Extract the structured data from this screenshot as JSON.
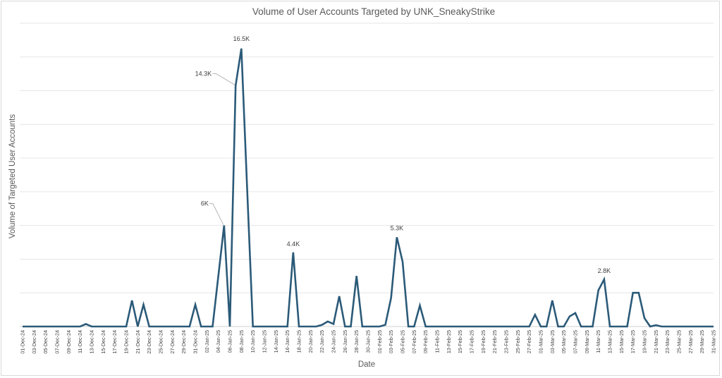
{
  "chart_data": {
    "type": "line",
    "title": "Volume of User Accounts Targeted by UNK_SneakyStrike",
    "xlabel": "Date",
    "ylabel": "Volume of Targeted User Accounts",
    "ylim": [
      0,
      18000
    ],
    "y_tick_labels_shown": false,
    "grid": true,
    "legend": "none",
    "line_color": "#2b5a78",
    "x": [
      "01-Dec-24",
      "02-Dec-24",
      "03-Dec-24",
      "04-Dec-24",
      "05-Dec-24",
      "06-Dec-24",
      "07-Dec-24",
      "08-Dec-24",
      "09-Dec-24",
      "10-Dec-24",
      "11-Dec-24",
      "12-Dec-24",
      "13-Dec-24",
      "14-Dec-24",
      "15-Dec-24",
      "16-Dec-24",
      "17-Dec-24",
      "18-Dec-24",
      "19-Dec-24",
      "20-Dec-24",
      "21-Dec-24",
      "22-Dec-24",
      "23-Dec-24",
      "24-Dec-24",
      "25-Dec-24",
      "26-Dec-24",
      "27-Dec-24",
      "28-Dec-24",
      "29-Dec-24",
      "30-Dec-24",
      "31-Dec-24",
      "01-Jan-25",
      "02-Jan-25",
      "03-Jan-25",
      "04-Jan-25",
      "05-Jan-25",
      "06-Jan-25",
      "07-Jan-25",
      "08-Jan-25",
      "09-Jan-25",
      "10-Jan-25",
      "11-Jan-25",
      "12-Jan-25",
      "13-Jan-25",
      "14-Jan-25",
      "15-Jan-25",
      "16-Jan-25",
      "17-Jan-25",
      "18-Jan-25",
      "19-Jan-25",
      "20-Jan-25",
      "21-Jan-25",
      "22-Jan-25",
      "23-Jan-25",
      "24-Jan-25",
      "25-Jan-25",
      "26-Jan-25",
      "27-Jan-25",
      "28-Jan-25",
      "29-Jan-25",
      "30-Jan-25",
      "31-Jan-25",
      "01-Feb-25",
      "02-Feb-25",
      "03-Feb-25",
      "04-Feb-25",
      "05-Feb-25",
      "06-Feb-25",
      "07-Feb-25",
      "08-Feb-25",
      "09-Feb-25",
      "10-Feb-25",
      "11-Feb-25",
      "12-Feb-25",
      "13-Feb-25",
      "14-Feb-25",
      "15-Feb-25",
      "16-Feb-25",
      "17-Feb-25",
      "18-Feb-25",
      "19-Feb-25",
      "20-Feb-25",
      "21-Feb-25",
      "22-Feb-25",
      "23-Feb-25",
      "24-Feb-25",
      "25-Feb-25",
      "26-Feb-25",
      "27-Feb-25",
      "28-Feb-25",
      "01-Mar-25",
      "02-Mar-25",
      "03-Mar-25",
      "04-Mar-25",
      "05-Mar-25",
      "06-Mar-25",
      "07-Mar-25",
      "08-Mar-25",
      "09-Mar-25",
      "10-Mar-25",
      "11-Mar-25",
      "12-Mar-25",
      "13-Mar-25",
      "14-Mar-25",
      "15-Mar-25",
      "16-Mar-25",
      "17-Mar-25",
      "18-Mar-25",
      "19-Mar-25",
      "20-Mar-25",
      "21-Mar-25",
      "22-Mar-25",
      "23-Mar-25",
      "24-Mar-25",
      "25-Mar-25",
      "26-Mar-25",
      "27-Mar-25",
      "28-Mar-25",
      "29-Mar-25",
      "30-Mar-25",
      "31-Mar-25"
    ],
    "values": [
      0,
      0,
      0,
      0,
      0,
      0,
      0,
      0,
      0,
      0,
      0,
      150,
      0,
      0,
      0,
      0,
      0,
      0,
      0,
      1550,
      0,
      1300,
      0,
      0,
      0,
      0,
      0,
      0,
      0,
      0,
      1300,
      0,
      0,
      0,
      3000,
      6000,
      0,
      14300,
      16500,
      8200,
      0,
      0,
      0,
      0,
      0,
      0,
      0,
      4400,
      0,
      0,
      0,
      0,
      100,
      300,
      150,
      1800,
      0,
      0,
      3000,
      0,
      0,
      0,
      0,
      100,
      1700,
      5300,
      3850,
      0,
      0,
      1250,
      0,
      0,
      0,
      0,
      0,
      0,
      0,
      0,
      0,
      0,
      0,
      0,
      0,
      0,
      0,
      0,
      0,
      0,
      0,
      700,
      0,
      0,
      1550,
      0,
      0,
      600,
      800,
      0,
      0,
      0,
      2150,
      2800,
      0,
      0,
      0,
      0,
      2000,
      2000,
      500,
      0,
      80,
      0,
      0,
      0,
      0,
      0,
      0,
      0,
      0,
      0,
      0
    ],
    "data_labels": [
      {
        "date": "05-Jan-25",
        "text": "6K"
      },
      {
        "date": "07-Jan-25",
        "text": "14.3K"
      },
      {
        "date": "08-Jan-25",
        "text": "16.5K"
      },
      {
        "date": "17-Jan-25",
        "text": "4.4K"
      },
      {
        "date": "04-Feb-25",
        "text": "5.3K"
      },
      {
        "date": "12-Mar-25",
        "text": "2.8K"
      }
    ]
  }
}
